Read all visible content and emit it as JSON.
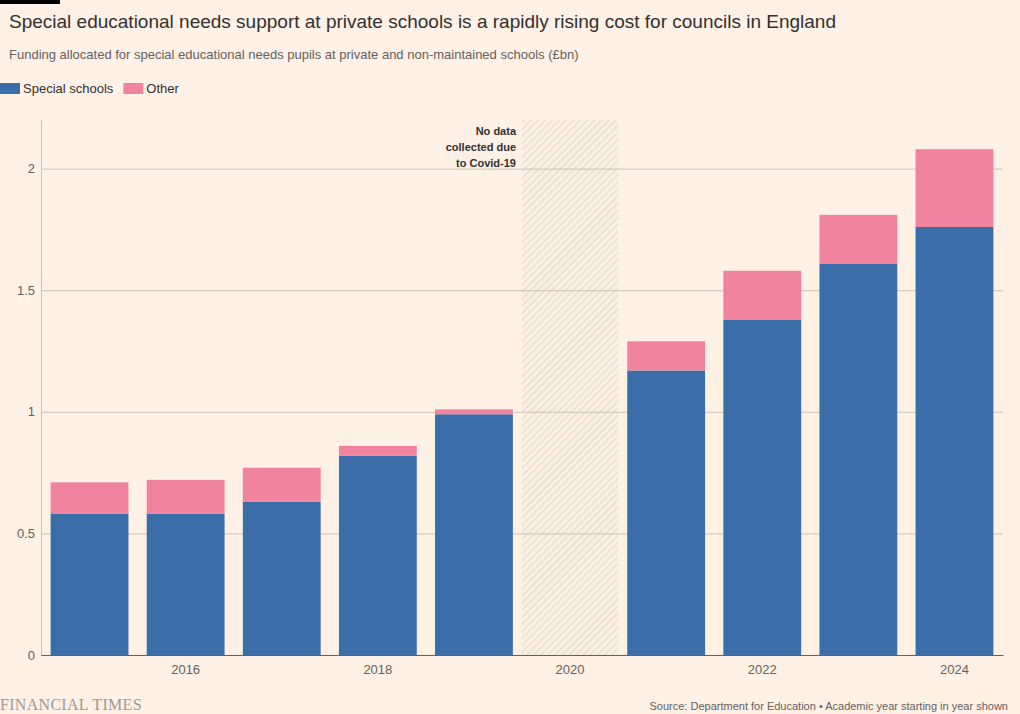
{
  "chart_data": {
    "type": "bar",
    "stacked": true,
    "title": "Special educational needs support at private schools is a rapidly rising cost for councils in England",
    "subtitle": "Funding allocated for special educational needs pupils at private and non-maintained schools (£bn)",
    "annotation": [
      "No data",
      "collected due",
      "to Covid-19"
    ],
    "source": "Source: Department for Education • Academic year starting in year shown",
    "logo": "FINANCIAL TIMES",
    "categories": [
      null,
      "2016",
      null,
      "2018",
      null,
      "2020",
      null,
      "2022",
      null,
      "2024"
    ],
    "series": [
      {
        "name": "Special schools",
        "color": "#3b6ea8",
        "values": [
          0.58,
          0.58,
          0.63,
          0.82,
          0.99,
          null,
          1.17,
          1.38,
          1.61,
          1.76
        ]
      },
      {
        "name": "Other",
        "color": "#f0849e",
        "values": [
          0.13,
          0.14,
          0.14,
          0.04,
          0.02,
          null,
          0.12,
          0.2,
          0.2,
          0.32
        ]
      }
    ],
    "ylim": [
      0,
      2.2
    ],
    "yticks": [
      0,
      0.5,
      1,
      1.5,
      2
    ],
    "grid": true,
    "legend": "top-left"
  }
}
